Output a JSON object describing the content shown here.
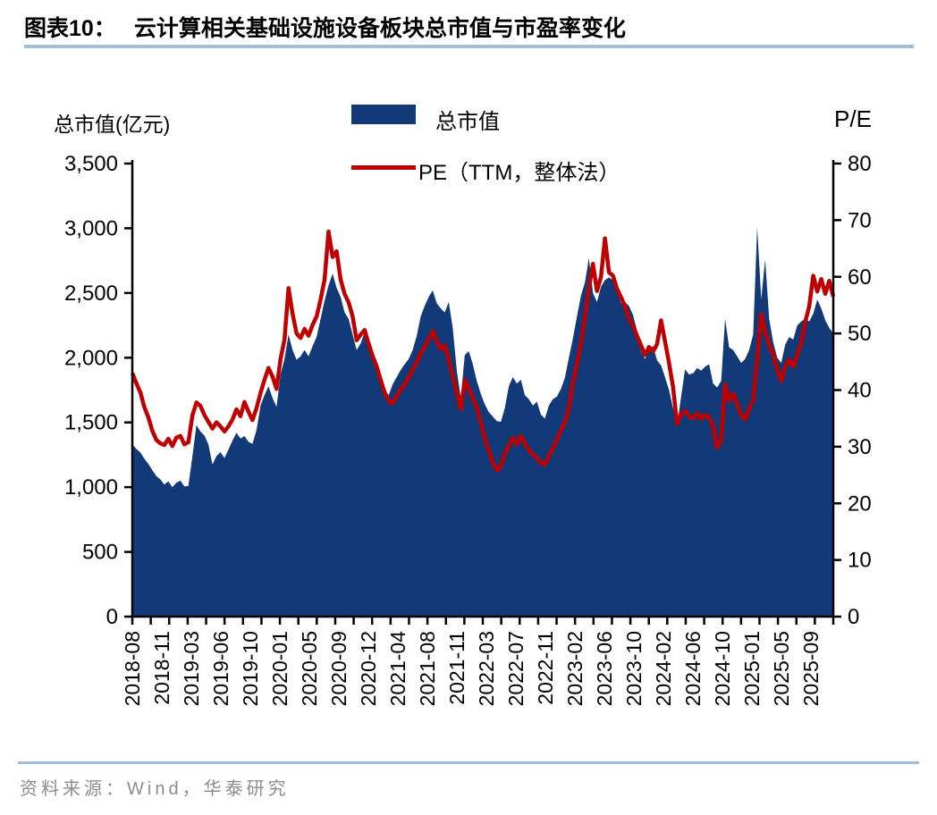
{
  "header": {
    "label": "图表10：",
    "title": "云计算相关基础设施设备板块总市值与市盈率变化"
  },
  "footer": {
    "source": "资料来源：Wind，华泰研究"
  },
  "colors": {
    "market_cap_fill": "#123a78",
    "pe_line": "#c00000",
    "rule": "#a3bdd6",
    "axis": "#000000",
    "footer_text": "#8c8c8c"
  },
  "chart_data": {
    "type": "area+line",
    "title": "云计算相关基础设施设备板块总市值与市盈率变化",
    "grid": false,
    "legend_position": "top-center",
    "legend": [
      {
        "label": "总市值",
        "type": "area",
        "color": "#123a78",
        "axis": "left"
      },
      {
        "label": "PE（TTM，整体法）",
        "type": "line",
        "color": "#c00000",
        "axis": "right"
      }
    ],
    "left_axis": {
      "title": "总市值(亿元)",
      "min": 0,
      "max": 3500,
      "tick_labels": [
        "3,500",
        "3,000",
        "2,500",
        "2,000",
        "1,500",
        "1,000",
        "500",
        "0"
      ]
    },
    "right_axis": {
      "title": "P/E",
      "min": 0,
      "max": 80,
      "tick_labels": [
        "80",
        "70",
        "60",
        "50",
        "40",
        "30",
        "20",
        "10",
        "0"
      ]
    },
    "x_axis": {
      "start": "2018-08",
      "end": "2025-11",
      "total_weeks": 380,
      "label_interval_weeks": 16,
      "tick_interval_weeks": 10,
      "labels": [
        "2018-08",
        "2018-11",
        "2019-03",
        "2019-06",
        "2019-10",
        "2020-01",
        "2020-05",
        "2020-09",
        "2020-12",
        "2021-04",
        "2021-08",
        "2021-11",
        "2022-03",
        "2022-07",
        "2022-11",
        "2023-02",
        "2023-06",
        "2023-10",
        "2024-02",
        "2024-06",
        "2024-10",
        "2025-01",
        "2025-05",
        "2025-09"
      ]
    },
    "series": [
      {
        "name": "总市值",
        "axis": "left",
        "units": "亿元",
        "values": [
          1330,
          1295,
          1268,
          1220,
          1180,
          1130,
          1085,
          1060,
          1020,
          1045,
          1000,
          1035,
          1050,
          1005,
          1010,
          1240,
          1480,
          1430,
          1400,
          1330,
          1175,
          1240,
          1270,
          1225,
          1290,
          1360,
          1420,
          1375,
          1395,
          1350,
          1335,
          1440,
          1630,
          1710,
          1780,
          1690,
          1620,
          1870,
          1990,
          2180,
          2060,
          1985,
          2010,
          2060,
          2010,
          2090,
          2160,
          2300,
          2440,
          2560,
          2650,
          2540,
          2470,
          2350,
          2300,
          2180,
          2060,
          2110,
          2200,
          2090,
          2040,
          1920,
          1860,
          1760,
          1710,
          1795,
          1850,
          1905,
          1950,
          1990,
          2060,
          2170,
          2320,
          2400,
          2470,
          2520,
          2420,
          2380,
          2350,
          2430,
          2230,
          1900,
          1690,
          2020,
          2050,
          1950,
          1820,
          1720,
          1640,
          1580,
          1545,
          1510,
          1505,
          1610,
          1780,
          1850,
          1800,
          1830,
          1710,
          1680,
          1630,
          1660,
          1560,
          1530,
          1630,
          1680,
          1700,
          1760,
          1845,
          2000,
          2150,
          2320,
          2480,
          2580,
          2770,
          2500,
          2430,
          2550,
          2600,
          2620,
          2600,
          2520,
          2420,
          2430,
          2400,
          2330,
          2210,
          2050,
          1990,
          2060,
          2090,
          1980,
          1940,
          1850,
          1750,
          1610,
          1475,
          1700,
          1910,
          1870,
          1880,
          1920,
          1900,
          1930,
          1950,
          1800,
          1770,
          1820,
          2300,
          2080,
          2060,
          2010,
          1960,
          1990,
          2060,
          2180,
          3010,
          2450,
          2760,
          2300,
          2120,
          2000,
          1960,
          2100,
          2160,
          2140,
          2250,
          2280,
          2300,
          2280,
          2340,
          2450,
          2380,
          2290,
          2230,
          2190
        ]
      },
      {
        "name": "PE（TTM，整体法）",
        "axis": "right",
        "values": [
          43.0,
          41.2,
          39.6,
          37.0,
          35.2,
          32.8,
          31.2,
          30.6,
          30.3,
          31.4,
          30.1,
          31.6,
          31.9,
          30.4,
          30.8,
          35.5,
          37.8,
          37.2,
          35.6,
          34.4,
          33.2,
          34.3,
          33.6,
          32.7,
          33.6,
          34.8,
          36.6,
          35.4,
          37.9,
          36.2,
          34.7,
          36.8,
          39.5,
          41.8,
          43.9,
          42.4,
          40.2,
          45.5,
          48.9,
          58.0,
          53.5,
          50.0,
          49.2,
          50.8,
          49.6,
          51.5,
          53.0,
          56.0,
          59.5,
          68.0,
          63.5,
          64.5,
          59.5,
          57.0,
          55.5,
          53.0,
          48.8,
          49.8,
          50.6,
          48.2,
          46.0,
          44.2,
          41.8,
          39.6,
          38.1,
          37.6,
          38.9,
          40.1,
          41.0,
          42.2,
          43.6,
          44.9,
          46.4,
          47.7,
          49.0,
          50.4,
          48.6,
          47.2,
          47.9,
          45.3,
          42.5,
          39.5,
          36.6,
          41.8,
          40.3,
          38.6,
          36.9,
          34.2,
          31.4,
          29.3,
          27.2,
          25.8,
          26.6,
          28.7,
          30.1,
          31.6,
          30.4,
          31.9,
          30.6,
          29.4,
          28.6,
          28.1,
          27.1,
          26.8,
          28.4,
          29.8,
          31.2,
          33.0,
          34.3,
          36.8,
          41.3,
          44.6,
          48.2,
          53.0,
          58.0,
          62.3,
          57.5,
          60.0,
          66.8,
          60.8,
          60.2,
          57.9,
          56.4,
          54.8,
          52.6,
          51.4,
          49.6,
          47.9,
          46.2,
          47.6,
          46.8,
          48.1,
          52.3,
          48.6,
          44.8,
          40.5,
          34.0,
          35.8,
          36.3,
          35.4,
          35.0,
          35.9,
          34.9,
          35.6,
          35.2,
          33.4,
          29.8,
          31.2,
          41.0,
          38.1,
          39.4,
          37.4,
          35.6,
          34.8,
          36.7,
          38.2,
          45.5,
          53.4,
          50.2,
          48.0,
          46.3,
          43.6,
          41.6,
          44.3,
          45.4,
          44.1,
          46.2,
          48.4,
          52.0,
          54.8,
          60.2,
          57.4,
          59.6,
          57.0,
          59.3,
          56.5
        ]
      }
    ]
  }
}
